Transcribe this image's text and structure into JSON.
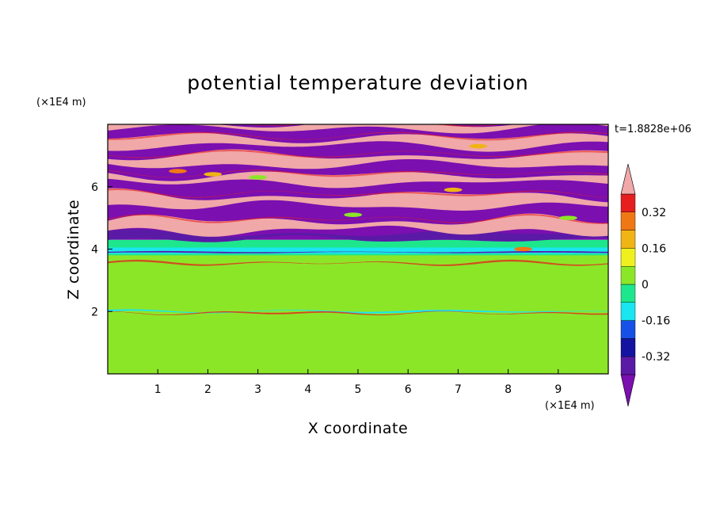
{
  "chart_data": {
    "type": "heatmap",
    "title": "potential temperature deviation",
    "xlabel": "X coordinate",
    "ylabel": "Z coordinate",
    "x_unit": "(×1E4 m)",
    "y_unit": "(×1E4 m)",
    "time_label": "t=1.8828e+06",
    "xlim": [
      0,
      10
    ],
    "ylim": [
      0,
      8
    ],
    "x_ticks": [
      "1",
      "2",
      "3",
      "4",
      "5",
      "6",
      "7",
      "8",
      "9"
    ],
    "y_ticks": [
      "2",
      "4",
      "6"
    ],
    "colorbar": {
      "levels": [
        -0.48,
        -0.4,
        -0.32,
        -0.24,
        -0.16,
        -0.08,
        0,
        0.08,
        0.16,
        0.24,
        0.32,
        0.4,
        0.48
      ],
      "colors": [
        "#7b0fb0",
        "#5a1aa6",
        "#1414a0",
        "#1650e6",
        "#19e6f0",
        "#1ee68c",
        "#8ce628",
        "#f0f01e",
        "#f0b414",
        "#f07814",
        "#e61e1e",
        "#f0a8a8"
      ],
      "tick_labels": [
        "0.32",
        "0.16",
        "0",
        "-0.16",
        "-0.32"
      ],
      "extend": "both"
    },
    "layers": [
      {
        "z_range": [
          0.0,
          3.9
        ],
        "values": [
          0.0,
          0.08
        ],
        "description": "turbulent lower layer, alternating 0 to 0.08 with thin positive streaks near z=2"
      },
      {
        "z_range": [
          3.9,
          4.3
        ],
        "values": [
          -0.16,
          -0.08
        ],
        "description": "inversion band"
      },
      {
        "z_range": [
          4.3,
          8.0
        ],
        "values": [
          -0.48,
          0.48
        ],
        "description": "alternating strongly negative and strongly positive wave layers"
      }
    ]
  }
}
